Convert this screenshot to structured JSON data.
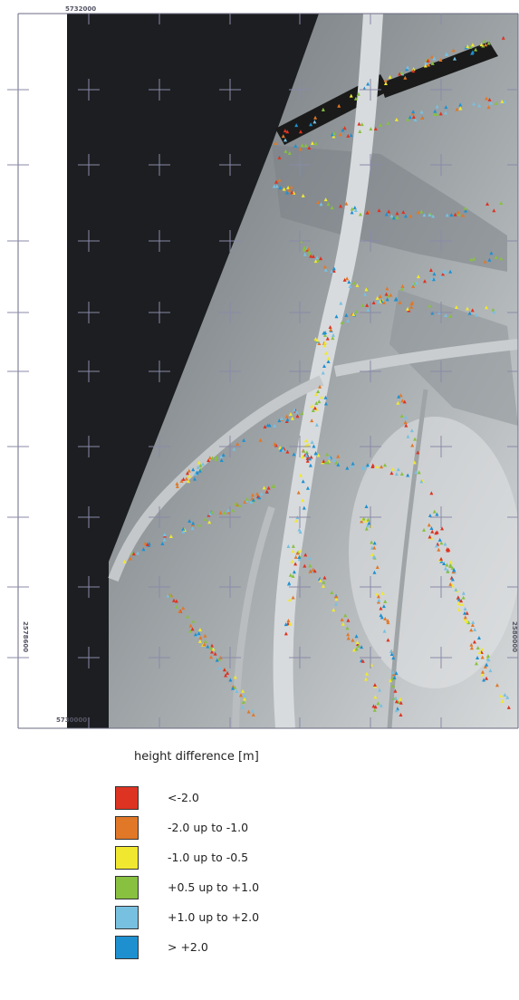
{
  "map": {
    "coords": {
      "top_left": "5732000",
      "bottom_left": "5730000",
      "left_vertical": "2578600",
      "right_vertical": "2580000"
    }
  },
  "legend": {
    "title": "height difference [m]",
    "items": [
      {
        "label": "<-2.0",
        "color": "#dd3322"
      },
      {
        "label": "-2.0 up to -1.0",
        "color": "#e07828"
      },
      {
        "label": "-1.0 up to -0.5",
        "color": "#f0e830"
      },
      {
        "label": "+0.5 up to +1.0",
        "color": "#88c040"
      },
      {
        "label": "+1.0 up to +2.0",
        "color": "#78c0e0"
      },
      {
        "label": "> +2.0",
        "color": "#1e90d0"
      }
    ]
  }
}
